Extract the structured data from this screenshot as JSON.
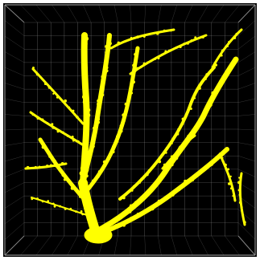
{
  "image": {
    "subject": "neuron",
    "background_color": "#000000",
    "frame_color": "#ffffff",
    "neuron_color": "#ffff00",
    "grid_color": "#9a9a9a"
  }
}
